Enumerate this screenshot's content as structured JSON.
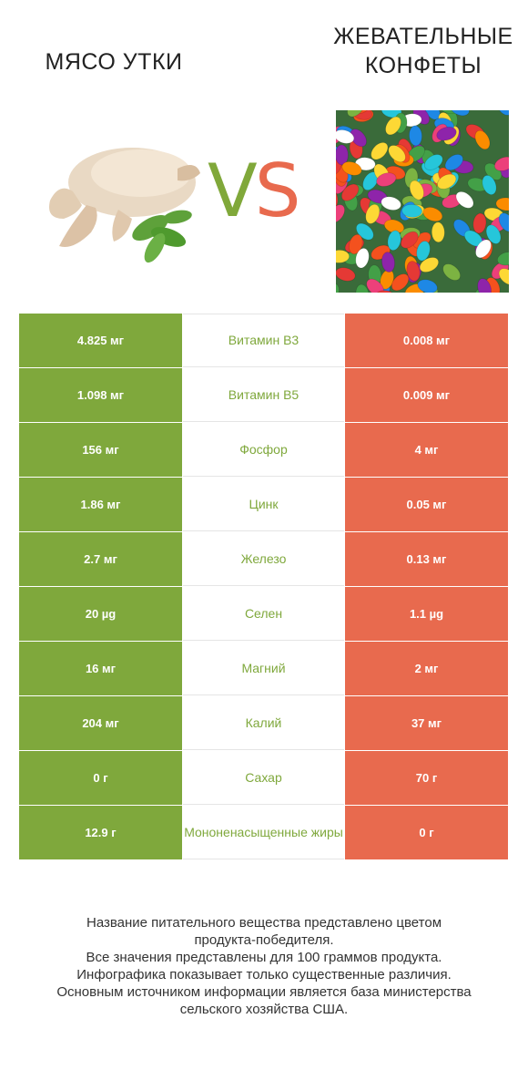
{
  "header": {
    "left_title": "МЯСО УТКИ",
    "right_title_line1": "ЖЕВАТЕЛЬНЫЕ",
    "right_title_line2": "КОНФЕТЫ",
    "vs_v": "V",
    "vs_s": "S"
  },
  "colors": {
    "left_winner": "#7fa83c",
    "right_winner": "#e86a4e"
  },
  "rows": [
    {
      "left": "4.825 мг",
      "nutrient": "Витамин B3",
      "right": "0.008 мг",
      "winner": "left"
    },
    {
      "left": "1.098 мг",
      "nutrient": "Витамин B5",
      "right": "0.009 мг",
      "winner": "left"
    },
    {
      "left": "156 мг",
      "nutrient": "Фосфор",
      "right": "4 мг",
      "winner": "left"
    },
    {
      "left": "1.86 мг",
      "nutrient": "Цинк",
      "right": "0.05 мг",
      "winner": "left"
    },
    {
      "left": "2.7 мг",
      "nutrient": "Железо",
      "right": "0.13 мг",
      "winner": "left"
    },
    {
      "left": "20 µg",
      "nutrient": "Селен",
      "right": "1.1 µg",
      "winner": "left"
    },
    {
      "left": "16 мг",
      "nutrient": "Магний",
      "right": "2 мг",
      "winner": "left"
    },
    {
      "left": "204 мг",
      "nutrient": "Калий",
      "right": "37 мг",
      "winner": "left"
    },
    {
      "left": "0 г",
      "nutrient": "Сахар",
      "right": "70 г",
      "winner": "left"
    },
    {
      "left": "12.9 г",
      "nutrient": "Мононенасыщенные жиры",
      "right": "0 г",
      "winner": "left"
    }
  ],
  "footer": {
    "line1": "Название питательного вещества представлено цветом",
    "line2": "продукта-победителя.",
    "line3": "Все значения представлены для 100 граммов продукта.",
    "line4": "Инфографика показывает только существенные различия.",
    "line5": "Основным источником информации является база министерства",
    "line6": "сельского хозяйства США."
  }
}
